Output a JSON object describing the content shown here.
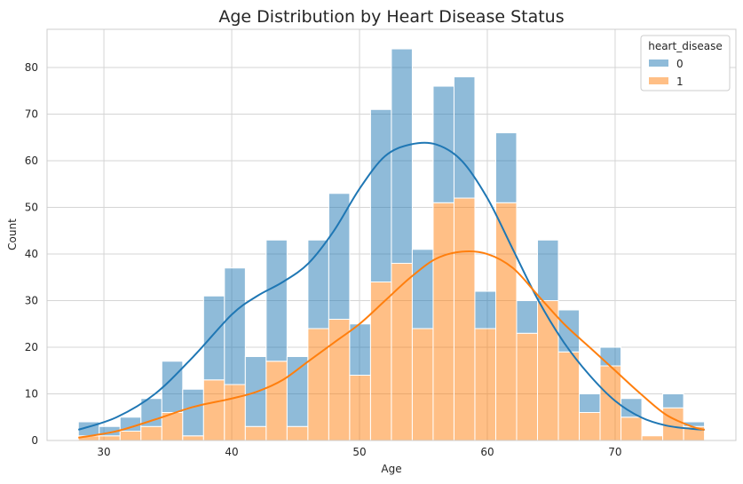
{
  "chart_data": {
    "type": "bar",
    "stacked": true,
    "title": "Age Distribution by Heart Disease Status",
    "xlabel": "Age",
    "ylabel": "Count",
    "xlim": [
      25.55,
      79.45
    ],
    "ylim": [
      0,
      88.2
    ],
    "xticks": [
      30,
      40,
      50,
      60,
      70
    ],
    "yticks": [
      0,
      10,
      20,
      30,
      40,
      50,
      60,
      70,
      80
    ],
    "grid": true,
    "bin_start": 28,
    "bin_width": 1.633,
    "legend": {
      "title": "heart_disease",
      "position": "top-right",
      "entries": [
        {
          "label": "0",
          "color": "#1f77b4"
        },
        {
          "label": "1",
          "color": "#ff7f0e"
        }
      ]
    },
    "series": [
      {
        "name": "1",
        "color": "#ff7f0e",
        "values": [
          1,
          1,
          2,
          3,
          6,
          1,
          13,
          12,
          3,
          17,
          3,
          24,
          26,
          14,
          34,
          38,
          24,
          51,
          52,
          24,
          51,
          23,
          30,
          19,
          6,
          16,
          5,
          1,
          7,
          3
        ]
      },
      {
        "name": "0",
        "color": "#1f77b4",
        "values": [
          3,
          2,
          3,
          6,
          11,
          10,
          18,
          25,
          15,
          26,
          15,
          19,
          27,
          11,
          37,
          46,
          17,
          25,
          26,
          8,
          15,
          7,
          13,
          9,
          4,
          4,
          4,
          0,
          3,
          1
        ]
      }
    ],
    "kde": [
      {
        "name": "0",
        "color": "#1f77b4",
        "points": [
          [
            28,
            2.3
          ],
          [
            31,
            5
          ],
          [
            34,
            10
          ],
          [
            37,
            18
          ],
          [
            40,
            27
          ],
          [
            42,
            31
          ],
          [
            44,
            34
          ],
          [
            46,
            38
          ],
          [
            48,
            45
          ],
          [
            50,
            54
          ],
          [
            52,
            61
          ],
          [
            54,
            63.5
          ],
          [
            56,
            63.5
          ],
          [
            58,
            60
          ],
          [
            60,
            52
          ],
          [
            62,
            41
          ],
          [
            64,
            30
          ],
          [
            66,
            21
          ],
          [
            68,
            14
          ],
          [
            70,
            8.5
          ],
          [
            72,
            5
          ],
          [
            74,
            3.2
          ],
          [
            76,
            2.5
          ],
          [
            77,
            2.3
          ]
        ]
      },
      {
        "name": "1",
        "color": "#ff7f0e",
        "points": [
          [
            28,
            0.6
          ],
          [
            31,
            2
          ],
          [
            34,
            4.5
          ],
          [
            37,
            7.2
          ],
          [
            40,
            9
          ],
          [
            42,
            10.5
          ],
          [
            44,
            13
          ],
          [
            46,
            17
          ],
          [
            48,
            21
          ],
          [
            50,
            25
          ],
          [
            52,
            30
          ],
          [
            54,
            35
          ],
          [
            56,
            39
          ],
          [
            58,
            40.5
          ],
          [
            60,
            40
          ],
          [
            62,
            37
          ],
          [
            64,
            31
          ],
          [
            66,
            25
          ],
          [
            68,
            20
          ],
          [
            70,
            15
          ],
          [
            72,
            10
          ],
          [
            74,
            5.5
          ],
          [
            76,
            3
          ],
          [
            77,
            2.3
          ]
        ]
      }
    ]
  }
}
